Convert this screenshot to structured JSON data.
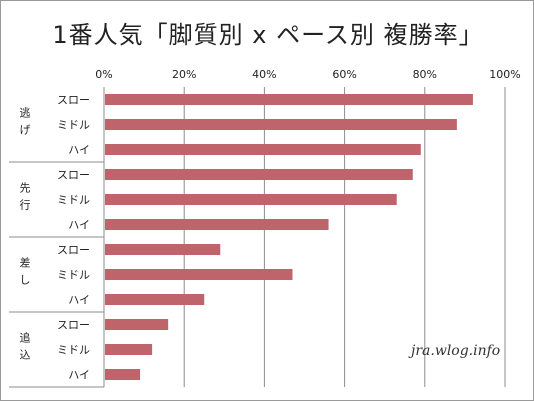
{
  "chart_data": {
    "type": "bar",
    "orientation": "horizontal",
    "title": "1番人気「脚質別 x ペース別 複勝率」",
    "xlabel": "",
    "ylabel": "",
    "xlim": [
      0,
      100
    ],
    "x_ticks": [
      "0%",
      "20%",
      "40%",
      "60%",
      "80%",
      "100%"
    ],
    "grid": true,
    "bar_color": "#c0646b",
    "categories": [
      {
        "group": "逃げ",
        "pace": "スロー"
      },
      {
        "group": "逃げ",
        "pace": "ミドル"
      },
      {
        "group": "逃げ",
        "pace": "ハイ"
      },
      {
        "group": "先行",
        "pace": "スロー"
      },
      {
        "group": "先行",
        "pace": "ミドル"
      },
      {
        "group": "先行",
        "pace": "ハイ"
      },
      {
        "group": "差し",
        "pace": "スロー"
      },
      {
        "group": "差し",
        "pace": "ミドル"
      },
      {
        "group": "差し",
        "pace": "ハイ"
      },
      {
        "group": "追込",
        "pace": "スロー"
      },
      {
        "group": "追込",
        "pace": "ミドル"
      },
      {
        "group": "追込",
        "pace": "ハイ"
      }
    ],
    "values": [
      92,
      88,
      79,
      77,
      73,
      56,
      29,
      47,
      25,
      16,
      12,
      9
    ]
  },
  "watermark": "jra.wlog.info"
}
